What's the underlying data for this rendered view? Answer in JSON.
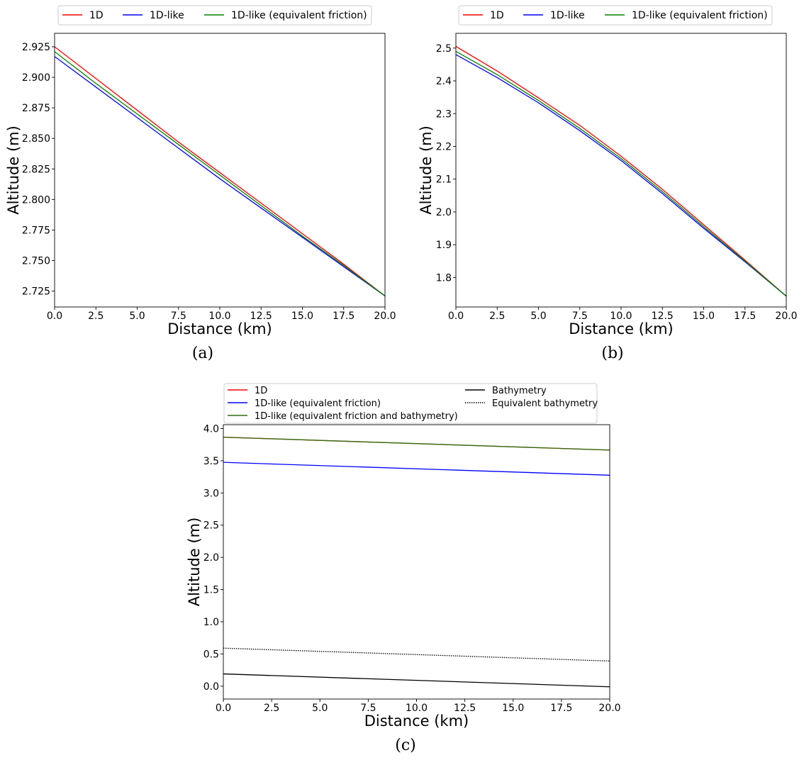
{
  "chart_data": [
    {
      "type": "line",
      "panel": "(a)",
      "xlabel": "Distance (km)",
      "ylabel": "Altitude (m)",
      "xlim": [
        0,
        20
      ],
      "ylim": [
        2.712,
        2.936
      ],
      "xticks": [
        "0.0",
        "2.5",
        "5.0",
        "7.5",
        "10.0",
        "12.5",
        "15.0",
        "17.5",
        "20.0"
      ],
      "yticks": [
        "2.725",
        "2.750",
        "2.775",
        "2.800",
        "2.825",
        "2.850",
        "2.875",
        "2.900",
        "2.925"
      ],
      "legend_placement": "top",
      "grid": false,
      "series": [
        {
          "name": "1D",
          "color": "#ff0000",
          "style": "solid",
          "x": [
            0,
            2.5,
            5,
            7.5,
            10,
            12.5,
            15,
            17.5,
            20
          ],
          "y": [
            2.925,
            2.899,
            2.873,
            2.847,
            2.822,
            2.797,
            2.772,
            2.747,
            2.721
          ]
        },
        {
          "name": "1D-like",
          "color": "#0000ff",
          "style": "solid",
          "x": [
            0,
            2.5,
            5,
            7.5,
            10,
            12.5,
            15,
            17.5,
            20
          ],
          "y": [
            2.917,
            2.892,
            2.867,
            2.842,
            2.817,
            2.793,
            2.769,
            2.745,
            2.721
          ]
        },
        {
          "name": "1D-like (equivalent friction)",
          "color": "#008000",
          "style": "solid",
          "x": [
            0,
            2.5,
            5,
            7.5,
            10,
            12.5,
            15,
            17.5,
            20
          ],
          "y": [
            2.921,
            2.895,
            2.87,
            2.845,
            2.82,
            2.795,
            2.77,
            2.746,
            2.721
          ]
        }
      ]
    },
    {
      "type": "line",
      "panel": "(b)",
      "xlabel": "Distance (km)",
      "ylabel": "Altitude (m)",
      "xlim": [
        0,
        20
      ],
      "ylim": [
        1.71,
        2.545
      ],
      "xticks": [
        "0.0",
        "2.5",
        "5.0",
        "7.5",
        "10.0",
        "12.5",
        "15.0",
        "17.5",
        "20.0"
      ],
      "yticks": [
        "1.8",
        "1.9",
        "2.0",
        "2.1",
        "2.2",
        "2.3",
        "2.4",
        "2.5"
      ],
      "legend_placement": "top",
      "grid": false,
      "series": [
        {
          "name": "1D",
          "color": "#ff0000",
          "style": "solid",
          "x": [
            0,
            2.5,
            5,
            7.5,
            10,
            12.5,
            15,
            17.5,
            20
          ],
          "y": [
            2.505,
            2.43,
            2.348,
            2.264,
            2.17,
            2.069,
            1.961,
            1.853,
            1.743
          ]
        },
        {
          "name": "1D-like",
          "color": "#0000ff",
          "style": "solid",
          "x": [
            0,
            2.5,
            5,
            7.5,
            10,
            12.5,
            15,
            17.5,
            20
          ],
          "y": [
            2.48,
            2.41,
            2.333,
            2.248,
            2.157,
            2.056,
            1.95,
            1.848,
            1.743
          ]
        },
        {
          "name": "1D-like (equivalent friction)",
          "color": "#008000",
          "style": "solid",
          "x": [
            0,
            2.5,
            5,
            7.5,
            10,
            12.5,
            15,
            17.5,
            20
          ],
          "y": [
            2.49,
            2.419,
            2.34,
            2.255,
            2.163,
            2.062,
            1.955,
            1.85,
            1.743
          ]
        }
      ]
    },
    {
      "type": "line",
      "panel": "(c)",
      "xlabel": "Distance (km)",
      "ylabel": "Altitude (m)",
      "xlim": [
        0,
        20
      ],
      "ylim": [
        -0.2,
        4.06
      ],
      "xticks": [
        "0.0",
        "2.5",
        "5.0",
        "7.5",
        "10.0",
        "12.5",
        "15.0",
        "17.5",
        "20.0"
      ],
      "yticks": [
        "0.0",
        "0.5",
        "1.0",
        "1.5",
        "2.0",
        "2.5",
        "3.0",
        "3.5",
        "4.0"
      ],
      "legend_placement": "top",
      "grid": false,
      "series": [
        {
          "name": "1D",
          "color": "#ff0000",
          "style": "solid",
          "x": [
            0,
            20
          ],
          "y": [
            3.865,
            3.665
          ]
        },
        {
          "name": "1D-like (equivalent friction)",
          "color": "#0000ff",
          "style": "solid",
          "x": [
            0,
            20
          ],
          "y": [
            3.475,
            3.275
          ]
        },
        {
          "name": "1D-like (equivalent friction and bathymetry)",
          "color": "#2f6f10",
          "style": "solid",
          "x": [
            0,
            20
          ],
          "y": [
            3.866,
            3.666
          ]
        },
        {
          "name": "Bathymetry",
          "color": "#000000",
          "style": "solid",
          "x": [
            0,
            20
          ],
          "y": [
            0.19,
            -0.01
          ]
        },
        {
          "name": "Equivalent bathymetry",
          "color": "#000000",
          "style": "dotted",
          "x": [
            0,
            20
          ],
          "y": [
            0.59,
            0.39
          ]
        }
      ]
    }
  ]
}
